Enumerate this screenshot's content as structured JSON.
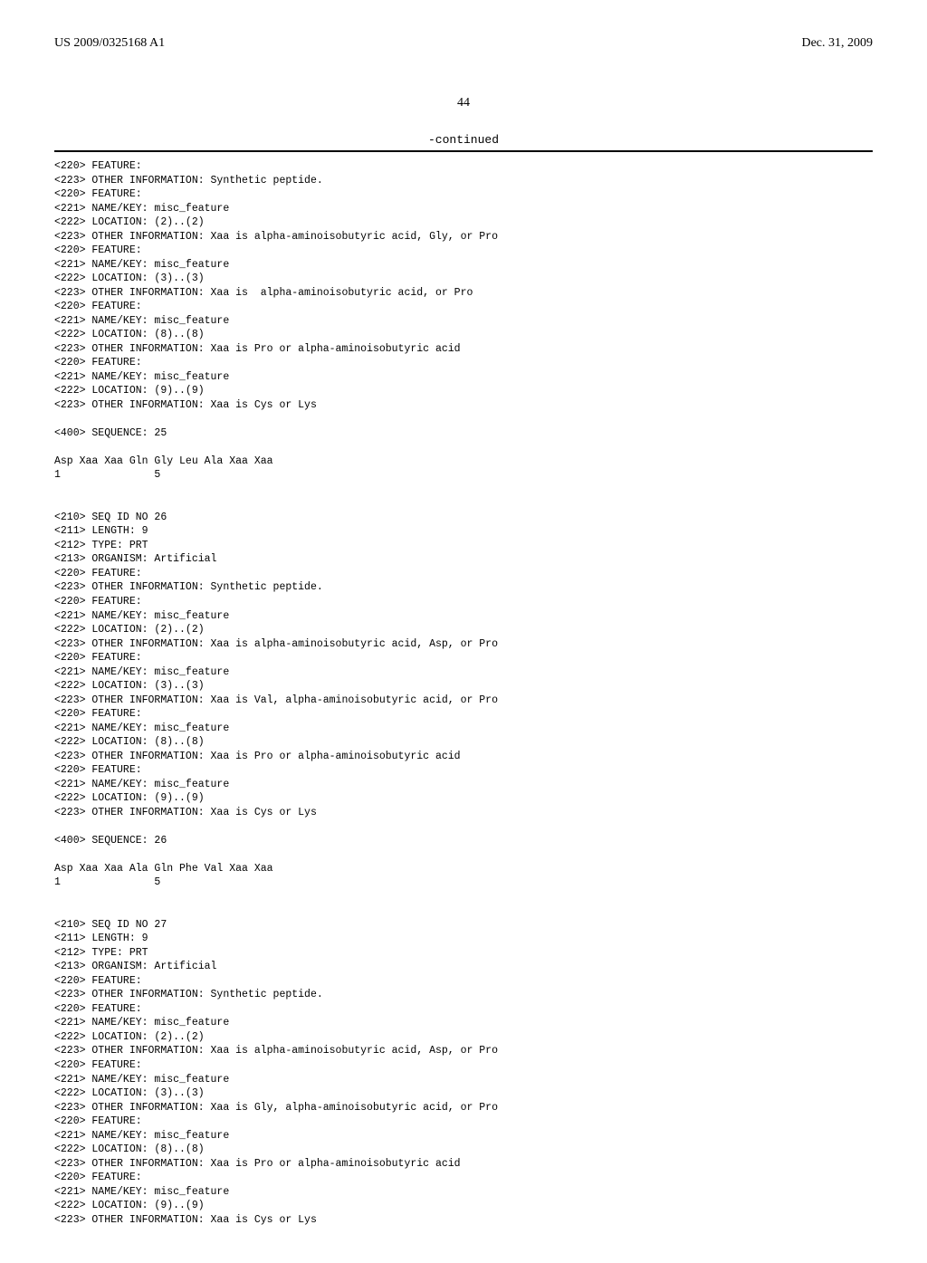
{
  "header": {
    "left": "US 2009/0325168 A1",
    "right": "Dec. 31, 2009"
  },
  "page_number": "44",
  "continued_label": "-continued",
  "sequence_text": "<220> FEATURE:\n<223> OTHER INFORMATION: Synthetic peptide.\n<220> FEATURE:\n<221> NAME/KEY: misc_feature\n<222> LOCATION: (2)..(2)\n<223> OTHER INFORMATION: Xaa is alpha-aminoisobutyric acid, Gly, or Pro\n<220> FEATURE:\n<221> NAME/KEY: misc_feature\n<222> LOCATION: (3)..(3)\n<223> OTHER INFORMATION: Xaa is  alpha-aminoisobutyric acid, or Pro\n<220> FEATURE:\n<221> NAME/KEY: misc_feature\n<222> LOCATION: (8)..(8)\n<223> OTHER INFORMATION: Xaa is Pro or alpha-aminoisobutyric acid\n<220> FEATURE:\n<221> NAME/KEY: misc_feature\n<222> LOCATION: (9)..(9)\n<223> OTHER INFORMATION: Xaa is Cys or Lys\n\n<400> SEQUENCE: 25\n\nAsp Xaa Xaa Gln Gly Leu Ala Xaa Xaa\n1               5\n\n\n<210> SEQ ID NO 26\n<211> LENGTH: 9\n<212> TYPE: PRT\n<213> ORGANISM: Artificial\n<220> FEATURE:\n<223> OTHER INFORMATION: Synthetic peptide.\n<220> FEATURE:\n<221> NAME/KEY: misc_feature\n<222> LOCATION: (2)..(2)\n<223> OTHER INFORMATION: Xaa is alpha-aminoisobutyric acid, Asp, or Pro\n<220> FEATURE:\n<221> NAME/KEY: misc_feature\n<222> LOCATION: (3)..(3)\n<223> OTHER INFORMATION: Xaa is Val, alpha-aminoisobutyric acid, or Pro\n<220> FEATURE:\n<221> NAME/KEY: misc_feature\n<222> LOCATION: (8)..(8)\n<223> OTHER INFORMATION: Xaa is Pro or alpha-aminoisobutyric acid\n<220> FEATURE:\n<221> NAME/KEY: misc_feature\n<222> LOCATION: (9)..(9)\n<223> OTHER INFORMATION: Xaa is Cys or Lys\n\n<400> SEQUENCE: 26\n\nAsp Xaa Xaa Ala Gln Phe Val Xaa Xaa\n1               5\n\n\n<210> SEQ ID NO 27\n<211> LENGTH: 9\n<212> TYPE: PRT\n<213> ORGANISM: Artificial\n<220> FEATURE:\n<223> OTHER INFORMATION: Synthetic peptide.\n<220> FEATURE:\n<221> NAME/KEY: misc_feature\n<222> LOCATION: (2)..(2)\n<223> OTHER INFORMATION: Xaa is alpha-aminoisobutyric acid, Asp, or Pro\n<220> FEATURE:\n<221> NAME/KEY: misc_feature\n<222> LOCATION: (3)..(3)\n<223> OTHER INFORMATION: Xaa is Gly, alpha-aminoisobutyric acid, or Pro\n<220> FEATURE:\n<221> NAME/KEY: misc_feature\n<222> LOCATION: (8)..(8)\n<223> OTHER INFORMATION: Xaa is Pro or alpha-aminoisobutyric acid\n<220> FEATURE:\n<221> NAME/KEY: misc_feature\n<222> LOCATION: (9)..(9)\n<223> OTHER INFORMATION: Xaa is Cys or Lys"
}
